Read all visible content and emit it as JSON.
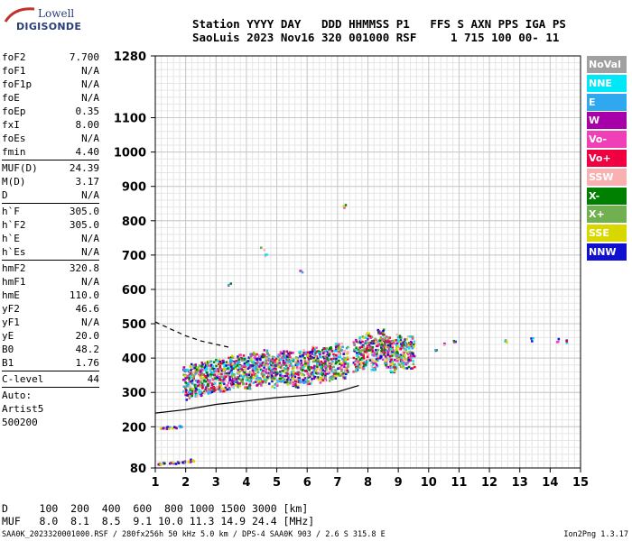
{
  "logo": {
    "line1": "Lowell",
    "line2": "DIGISONDE"
  },
  "header": {
    "line1": "Station YYYY DAY   DDD HHMMSS P1   FFS S AXN PPS IGA PS",
    "line2": "SaoLuis 2023 Nov16 320 001000 RSF     1 715 100 00- 11"
  },
  "params": {
    "group1": [
      {
        "label": "foF2",
        "value": "7.700"
      },
      {
        "label": "foF1",
        "value": "N/A"
      },
      {
        "label": "foF1p",
        "value": "N/A"
      },
      {
        "label": "foE",
        "value": "N/A"
      },
      {
        "label": "foEp",
        "value": "0.35"
      },
      {
        "label": "fxI",
        "value": "8.00"
      },
      {
        "label": "foEs",
        "value": "N/A"
      },
      {
        "label": "fmin",
        "value": "4.40"
      }
    ],
    "group2": [
      {
        "label": "MUF(D)",
        "value": "24.39"
      },
      {
        "label": "M(D)",
        "value": "3.17"
      },
      {
        "label": "D",
        "value": "N/A"
      }
    ],
    "group3": [
      {
        "label": "h`F",
        "value": "305.0"
      },
      {
        "label": "h`F2",
        "value": "305.0"
      },
      {
        "label": "h`E",
        "value": "N/A"
      },
      {
        "label": "h`Es",
        "value": "N/A"
      }
    ],
    "group4": [
      {
        "label": "hmF2",
        "value": "320.8"
      },
      {
        "label": "hmF1",
        "value": "N/A"
      },
      {
        "label": "hmE",
        "value": "110.0"
      },
      {
        "label": "yF2",
        "value": "46.6"
      },
      {
        "label": "yF1",
        "value": "N/A"
      },
      {
        "label": "yE",
        "value": "20.0"
      },
      {
        "label": "B0",
        "value": "48.2"
      },
      {
        "label": "B1",
        "value": "1.76"
      }
    ],
    "group5": [
      {
        "label": "C-level",
        "value": "44"
      }
    ],
    "auto": [
      "Auto:",
      "Artist5",
      "500200"
    ]
  },
  "legend": [
    {
      "label": "NoVal",
      "color": "#a0a0a0"
    },
    {
      "label": "NNE",
      "color": "#00e8f8"
    },
    {
      "label": "E",
      "color": "#30a8f0"
    },
    {
      "label": "W",
      "color": "#a800a8"
    },
    {
      "label": "Vo-",
      "color": "#f040b8"
    },
    {
      "label": "Vo+",
      "color": "#f00040"
    },
    {
      "label": "SSW",
      "color": "#f8b0b0"
    },
    {
      "label": "X-",
      "color": "#008000"
    },
    {
      "label": "X+",
      "color": "#70b050"
    },
    {
      "label": "SSE",
      "color": "#d8d800"
    },
    {
      "label": "NNW",
      "color": "#1010d0"
    }
  ],
  "bottom": {
    "line1": "D     100  200  400  600  800 1000 1500 3000 [km]",
    "line2": "MUF   8.0  8.1  8.5  9.1 10.0 11.3 14.9 24.4 [MHz]"
  },
  "footer": {
    "left": "SAA0K_2023320001000.RSF / 280fx256h 50 kHz 5.0 km / DPS-4 SAA0K 903 / 2.6 S 315.8 E",
    "right": "Ion2Png 1.3.17"
  },
  "chart_data": {
    "type": "scatter",
    "title": "",
    "xlabel": "",
    "ylabel": "",
    "xlim": [
      1,
      15
    ],
    "ylim": [
      80,
      1280
    ],
    "x_ticks": [
      1,
      2,
      3,
      4,
      5,
      6,
      7,
      8,
      9,
      10,
      11,
      12,
      13,
      14,
      15
    ],
    "y_ticks": [
      80,
      200,
      300,
      400,
      500,
      600,
      700,
      800,
      900,
      1000,
      1100,
      1280
    ],
    "grid": true,
    "series": [
      {
        "name": "O-trace echoes",
        "points": [
          [
            2.0,
            310
          ],
          [
            2.2,
            320
          ],
          [
            2.4,
            318
          ],
          [
            2.6,
            325
          ],
          [
            2.8,
            330
          ],
          [
            3.0,
            335
          ],
          [
            3.2,
            330
          ],
          [
            3.4,
            340
          ],
          [
            3.6,
            345
          ],
          [
            3.8,
            350
          ],
          [
            4.0,
            340
          ],
          [
            4.2,
            355
          ],
          [
            4.4,
            350
          ],
          [
            4.6,
            360
          ],
          [
            4.8,
            345
          ],
          [
            5.0,
            350
          ],
          [
            5.2,
            360
          ],
          [
            5.4,
            355
          ],
          [
            5.6,
            345
          ],
          [
            5.8,
            360
          ],
          [
            6.0,
            355
          ],
          [
            6.2,
            370
          ],
          [
            6.4,
            360
          ],
          [
            6.6,
            365
          ],
          [
            6.8,
            370
          ],
          [
            7.0,
            380
          ],
          [
            7.2,
            370
          ],
          [
            7.6,
            390
          ],
          [
            7.8,
            400
          ],
          [
            8.0,
            410
          ],
          [
            8.2,
            395
          ],
          [
            8.4,
            420
          ],
          [
            8.6,
            400
          ],
          [
            8.8,
            390
          ],
          [
            9.0,
            405
          ],
          [
            9.2,
            395
          ],
          [
            9.4,
            400
          ],
          [
            10.2,
            430
          ],
          [
            10.5,
            440
          ],
          [
            10.8,
            450
          ],
          [
            12.5,
            455
          ],
          [
            13.4,
            458
          ],
          [
            14.2,
            455
          ],
          [
            14.5,
            450
          ],
          [
            4.5,
            720
          ],
          [
            4.6,
            700
          ],
          [
            5.8,
            655
          ],
          [
            3.4,
            620
          ],
          [
            7.2,
            845
          ]
        ]
      },
      {
        "name": "Lower E-region echoes",
        "points": [
          [
            1.1,
            95
          ],
          [
            1.3,
            96
          ],
          [
            1.5,
            97
          ],
          [
            1.7,
            98
          ],
          [
            1.9,
            100
          ],
          [
            2.1,
            102
          ],
          [
            2.2,
            105
          ],
          [
            1.2,
            200
          ],
          [
            1.4,
            200
          ],
          [
            1.6,
            200
          ],
          [
            1.8,
            202
          ]
        ]
      }
    ],
    "lines": [
      {
        "name": "profile",
        "style": "solid",
        "points": [
          [
            1.0,
            240
          ],
          [
            2.0,
            250
          ],
          [
            3.0,
            265
          ],
          [
            4.0,
            275
          ],
          [
            5.0,
            285
          ],
          [
            6.0,
            292
          ],
          [
            7.0,
            302
          ],
          [
            7.7,
            320
          ]
        ]
      },
      {
        "name": "profile",
        "style": "dashed",
        "points": [
          [
            1.0,
            505
          ],
          [
            1.5,
            485
          ],
          [
            2.0,
            465
          ],
          [
            2.5,
            450
          ],
          [
            3.0,
            440
          ],
          [
            3.5,
            430
          ]
        ]
      }
    ]
  }
}
